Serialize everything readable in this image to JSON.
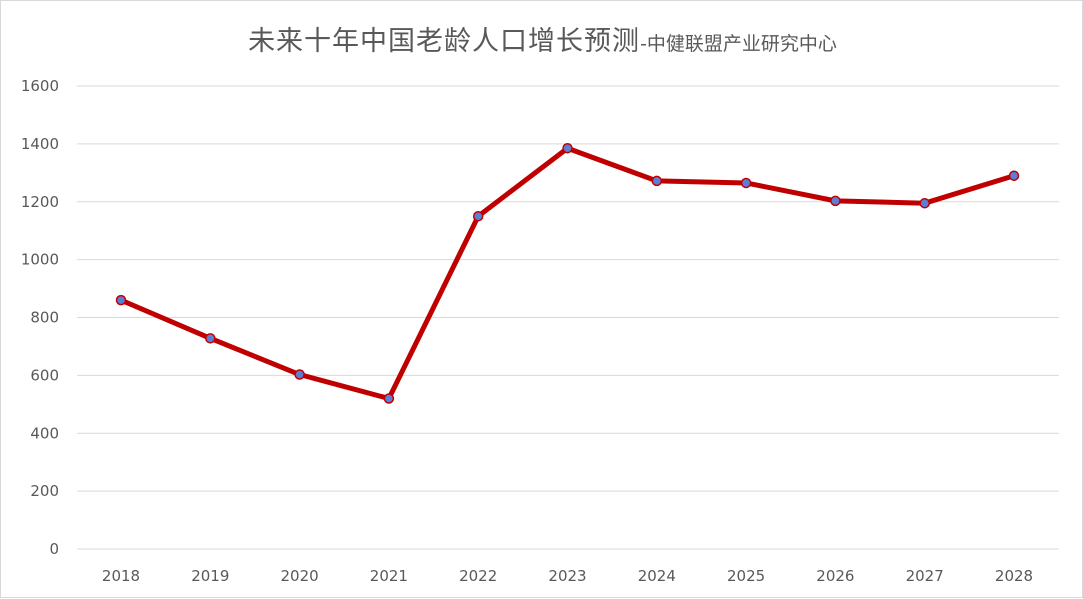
{
  "chart_data": {
    "type": "line",
    "title": "未来十年中国老龄人口增长预测",
    "title_suffix": "-中健联盟产业研究中心",
    "categories": [
      "2018",
      "2019",
      "2020",
      "2021",
      "2022",
      "2023",
      "2024",
      "2025",
      "2026",
      "2027",
      "2028"
    ],
    "series": [
      {
        "values": [
          860,
          728,
          603,
          520,
          1150,
          1385,
          1272,
          1265,
          1203,
          1195,
          1290
        ]
      }
    ],
    "yticks": [
      0,
      200,
      400,
      600,
      800,
      1000,
      1200,
      1400,
      1600
    ],
    "ylim": [
      0,
      1600
    ],
    "xlabel": "",
    "ylabel": "",
    "grid": "horizontal",
    "legend": "none",
    "colors": {
      "line": "#c00000",
      "marker_fill": "#5b7fd6",
      "marker_edge": "#c00000",
      "grid": "#d9d9d9",
      "text": "#595959"
    }
  }
}
